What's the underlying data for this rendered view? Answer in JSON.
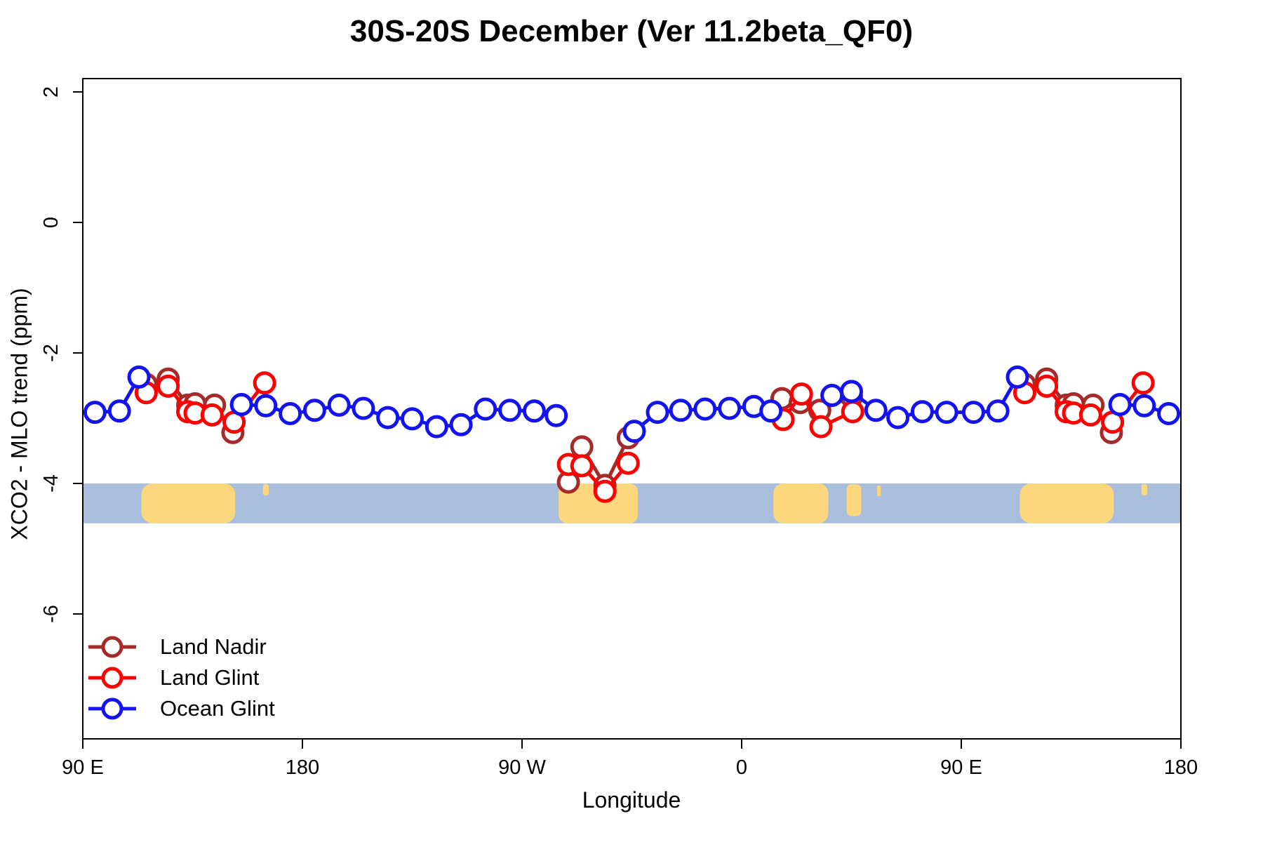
{
  "title": "30S-20S December (Ver 11.2beta_QF0)",
  "axes": {
    "x_label": "Longitude",
    "y_label": "XCO2 - MLO trend (ppm)",
    "x_ticks": [
      {
        "pos": 90,
        "label": "90 E"
      },
      {
        "pos": 180,
        "label": "180"
      },
      {
        "pos": 270,
        "label": "90 W"
      },
      {
        "pos": 360,
        "label": "0"
      },
      {
        "pos": 450,
        "label": "90 E"
      },
      {
        "pos": 540,
        "label": "180"
      }
    ],
    "y_ticks": [
      {
        "value": 2,
        "label": "2"
      },
      {
        "value": 0,
        "label": "0"
      },
      {
        "value": -2,
        "label": "-2"
      },
      {
        "value": -4,
        "label": "-4"
      },
      {
        "value": -6,
        "label": "-6"
      }
    ]
  },
  "legend": {
    "entries": [
      "Land Nadir",
      "Land Glint",
      "Ocean Glint"
    ]
  },
  "chart_data": {
    "type": "line",
    "title": "30S-20S December (Ver 11.2beta_QF0)",
    "xlabel": "Longitude",
    "ylabel": "XCO2 - MLO trend (ppm)",
    "x_axis_span_deg": [
      90,
      540
    ],
    "ylim_ppm": [
      2.2,
      -7.9
    ],
    "wrap_note": "longitude axis runs 90E eastward through 180, 90W, 0, 90E, 180; data for 90E-180 appear twice",
    "gap_break_deg": 15,
    "marker": {
      "shape": "open-circle",
      "radius": 14,
      "stroke_width": 5,
      "fill": "#FFFFFF"
    },
    "line_width": 5,
    "series": [
      {
        "name": "Land Nadir",
        "color": "#A52A2A",
        "points": [
          [
            116,
            -2.48
          ],
          [
            125,
            -2.4
          ],
          [
            133,
            -2.8
          ],
          [
            136,
            -2.78
          ],
          [
            144,
            -2.8
          ],
          [
            151.5,
            -3.22
          ],
          [
            -71,
            -3.98
          ],
          [
            -65.5,
            -3.44
          ],
          [
            -56,
            -4.03
          ],
          [
            -46.5,
            -3.3
          ],
          [
            16.5,
            -2.7
          ],
          [
            24,
            -2.76
          ],
          [
            32,
            -2.88
          ],
          [
            45,
            -2.67
          ]
        ]
      },
      {
        "name": "Land Glint",
        "color": "#FF0000",
        "points": [
          [
            116,
            -2.61
          ],
          [
            125,
            -2.51
          ],
          [
            133,
            -2.9
          ],
          [
            136,
            -2.92
          ],
          [
            143,
            -2.95
          ],
          [
            152,
            -3.06
          ],
          [
            164.5,
            -2.46
          ],
          [
            -71,
            -3.71
          ],
          [
            -65.5,
            -3.73
          ],
          [
            -56,
            -4.12
          ],
          [
            -46.5,
            -3.69
          ],
          [
            17,
            -3.02
          ],
          [
            24.5,
            -2.63
          ],
          [
            32.5,
            -3.13
          ],
          [
            45.5,
            -2.9
          ]
        ]
      },
      {
        "name": "Ocean Glint",
        "color": "#1313F0",
        "points": [
          [
            95,
            -2.91
          ],
          [
            105,
            -2.89
          ],
          [
            113,
            -2.37
          ],
          [
            155,
            -2.79
          ],
          [
            165,
            -2.81
          ],
          [
            175,
            -2.93
          ],
          [
            -175,
            -2.88
          ],
          [
            -165,
            -2.8
          ],
          [
            -155,
            -2.85
          ],
          [
            -145,
            -2.99
          ],
          [
            -135,
            -3.01
          ],
          [
            -125,
            -3.13
          ],
          [
            -115,
            -3.1
          ],
          [
            -105,
            -2.86
          ],
          [
            -95,
            -2.88
          ],
          [
            -85,
            -2.89
          ],
          [
            -76,
            -2.96
          ],
          [
            -44,
            -3.2
          ],
          [
            -34.5,
            -2.91
          ],
          [
            -25,
            -2.88
          ],
          [
            -15,
            -2.86
          ],
          [
            -5,
            -2.85
          ],
          [
            5,
            -2.82
          ],
          [
            12,
            -2.89
          ],
          [
            37,
            -2.65
          ],
          [
            45,
            -2.59
          ],
          [
            55,
            -2.88
          ],
          [
            64,
            -2.99
          ],
          [
            74,
            -2.9
          ],
          [
            84,
            -2.91
          ]
        ]
      }
    ],
    "map_band": {
      "ppm_top": -4.0,
      "ppm_bottom": -4.61,
      "ocean_color": "#A9BDDC",
      "land_color": "#FCD77E",
      "land_patches": [
        {
          "name": "australia",
          "lon0": 114,
          "lon1": 152.5,
          "t": 0,
          "b": 1,
          "r": 16
        },
        {
          "name": "new-caledonia",
          "lon0": 163.8,
          "lon1": 166.2,
          "t": 0.02,
          "b": 0.3,
          "r": 3
        },
        {
          "name": "south-america",
          "lon0": -75,
          "lon1": -42.5,
          "t": 0,
          "b": 1,
          "r": 12
        },
        {
          "name": "africa",
          "lon0": 13,
          "lon1": 35.5,
          "t": 0,
          "b": 1,
          "r": 14
        },
        {
          "name": "madagascar",
          "lon0": 43,
          "lon1": 49,
          "t": 0.02,
          "b": 0.82,
          "r": 7
        },
        {
          "name": "mauritius",
          "lon0": 55.5,
          "lon1": 57,
          "t": 0.05,
          "b": 0.32,
          "r": 2
        }
      ]
    }
  }
}
